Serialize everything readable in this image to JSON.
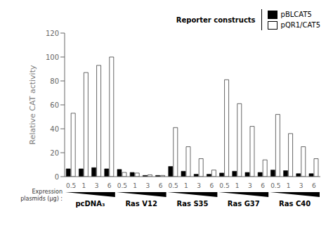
{
  "chart_data": {
    "type": "bar",
    "ylabel": "Relative CAT activity",
    "xlabel": "Expression\nplasmids (μg) :",
    "categories": [
      "0.5",
      "1",
      "3",
      "6",
      "0.5",
      "1",
      "3",
      "6",
      "0.5",
      "1",
      "3",
      "6",
      "0.5",
      "1",
      "3",
      "6",
      "0.5",
      "1",
      "3",
      "6"
    ],
    "group_labels": [
      "pcDNA₃",
      "Ras V12",
      "Ras S35",
      "Ras G37",
      "Ras C40"
    ],
    "series": [
      {
        "name": "pBLCAT5",
        "color": "#000000",
        "values": [
          6.5,
          6.5,
          7.5,
          6.5,
          6.0,
          3.5,
          1.0,
          1.0,
          8.5,
          4.5,
          2.0,
          2.0,
          3.0,
          4.5,
          3.5,
          3.5,
          5.5,
          5.0,
          2.5,
          2.5
        ]
      },
      {
        "name": "pQR1/CAT5",
        "color": "#ffffff",
        "values": [
          53,
          87,
          93,
          100,
          3.5,
          3.0,
          1.5,
          1.0,
          41,
          25,
          15,
          5.5,
          81,
          61,
          42,
          14,
          52,
          36,
          25,
          15
        ]
      }
    ],
    "ylim": [
      0,
      120
    ],
    "yticks": [
      0,
      20,
      40,
      60,
      80,
      100,
      120
    ],
    "legend": "upper right",
    "legend_title": "Reporter constructs",
    "grid": false
  }
}
